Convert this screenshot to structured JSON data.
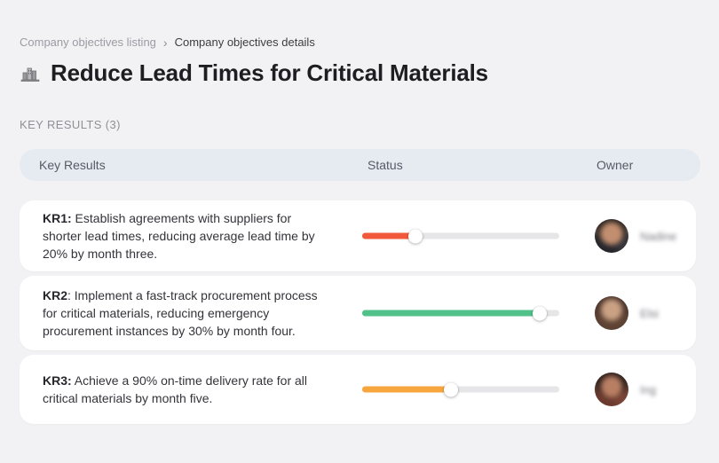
{
  "breadcrumb": {
    "parent": "Company objectives listing",
    "separator": "›",
    "current": "Company objectives details"
  },
  "header": {
    "icon": "buildings-icon",
    "title": "Reduce Lead Times for Critical Materials"
  },
  "section": {
    "label": "KEY RESULTS (3)"
  },
  "table": {
    "headers": {
      "key_results": "Key Results",
      "status": "Status",
      "owner": "Owner"
    },
    "rows": [
      {
        "kr_bold": "KR1:",
        "kr_text": " Establish agreements with suppliers for shorter lead times, reducing average lead time by 20% by month three.",
        "progress_percent": 27,
        "progress_color": "#f2593a",
        "owner_name": "Nadine"
      },
      {
        "kr_bold": "KR2",
        "kr_text": ": Implement a fast-track procurement process for critical materials, reducing emergency procurement instances by 30% by month four.",
        "progress_percent": 90,
        "progress_color": "#4fc189",
        "owner_name": "Elsi"
      },
      {
        "kr_bold": "KR3:",
        "kr_text": " Achieve a 90% on-time delivery rate for all critical materials by month five.",
        "progress_percent": 45,
        "progress_color": "#f7a63d",
        "owner_name": "Ing"
      }
    ]
  },
  "colors": {
    "page_bg": "#f2f2f4",
    "card_bg": "#ffffff",
    "table_header_bg": "#e6eaf1",
    "track": "#e6e6e8"
  }
}
